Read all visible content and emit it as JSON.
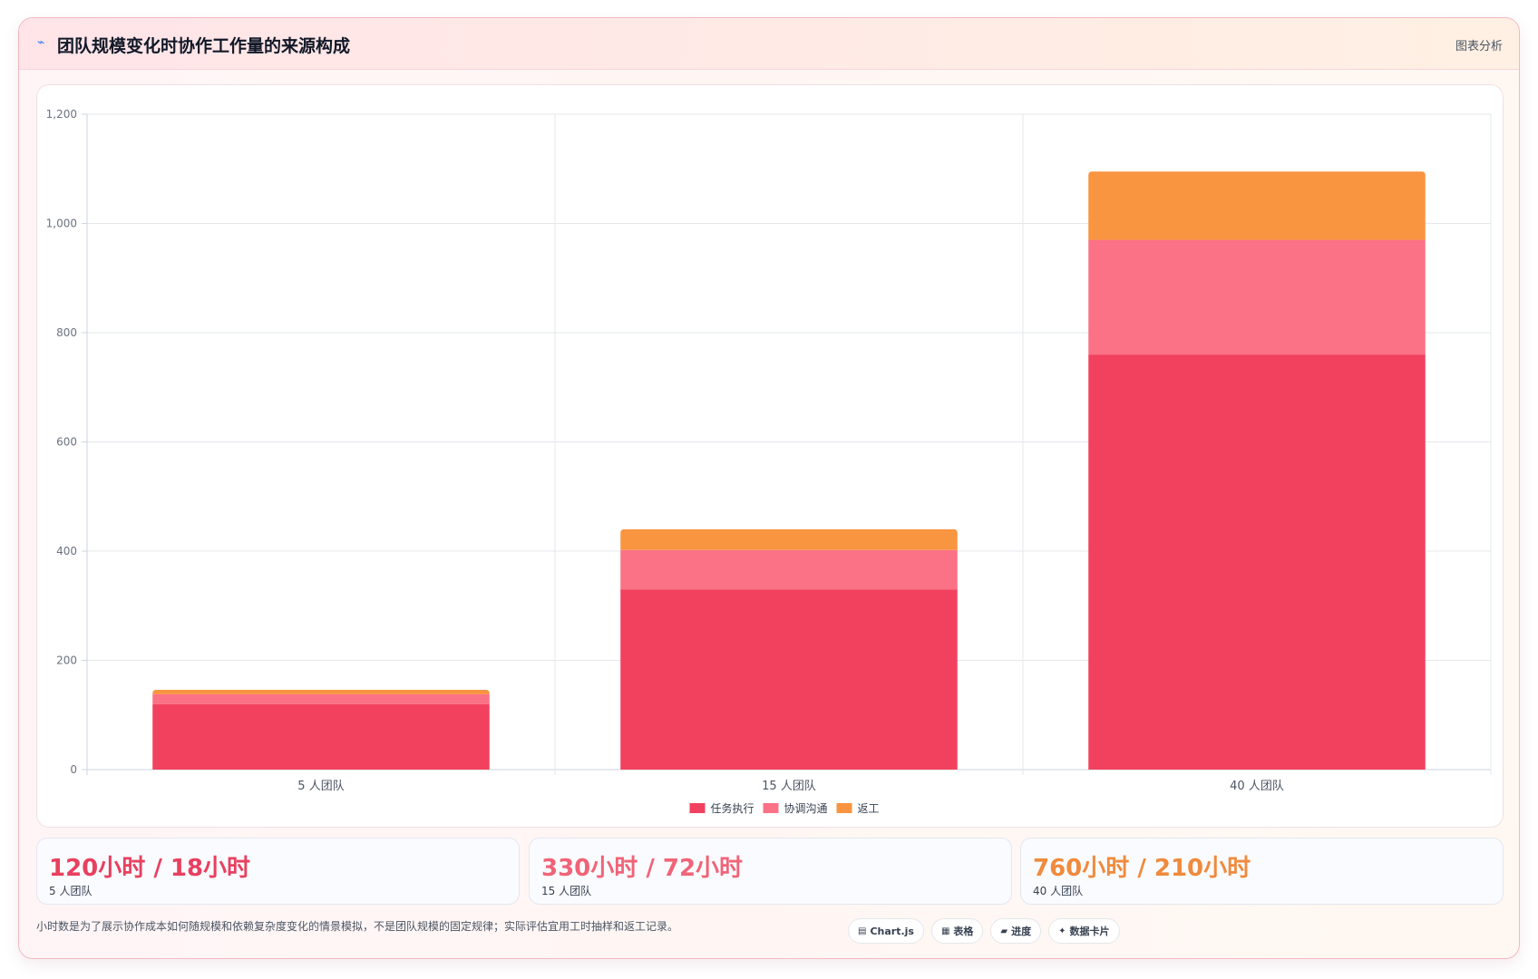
{
  "header": {
    "icon": "chart-line-icon",
    "title": "团队规模变化时协作工作量的来源构成",
    "tag": "图表分析"
  },
  "chart_data": {
    "type": "bar",
    "stacked": true,
    "categories": [
      "5 人团队",
      "15 人团队",
      "40 人团队"
    ],
    "series": [
      {
        "name": "任务执行",
        "values": [
          120,
          330,
          760
        ],
        "color": "#f2415f"
      },
      {
        "name": "协调沟通",
        "values": [
          18,
          72,
          210
        ],
        "color": "#fb7185"
      },
      {
        "name": "返工",
        "values": [
          8,
          38,
          125
        ],
        "color": "#f99441"
      }
    ],
    "ylim": [
      0,
      1200
    ],
    "yticks": [
      0,
      200,
      400,
      600,
      800,
      1000,
      1200
    ],
    "ytick_labels": [
      "0",
      "200",
      "400",
      "600",
      "800",
      "1,000",
      "1,200"
    ],
    "grid": true,
    "legend_position": "bottom"
  },
  "stats": [
    {
      "value": "120小时 / 18小时",
      "label": "5 人团队",
      "color": "#e8405f"
    },
    {
      "value": "330小时 / 72小时",
      "label": "15 人团队",
      "color": "#f06478"
    },
    {
      "value": "760小时 / 210小时",
      "label": "40 人团队",
      "color": "#f08a3c"
    }
  ],
  "footnote": "小时数是为了展示协作成本如何随规模和依赖复杂度变化的情景模拟，不是团队规模的固定规律；实际评估宜用工时抽样和返工记录。",
  "chips": [
    {
      "icon": "chart-icon",
      "glyph": "▤",
      "label": "Chart.js"
    },
    {
      "icon": "table-icon",
      "glyph": "▦",
      "label": "表格"
    },
    {
      "icon": "progress-icon",
      "glyph": "▰",
      "label": "进度"
    },
    {
      "icon": "sparkle-icon",
      "glyph": "✦",
      "label": "数据卡片"
    }
  ]
}
